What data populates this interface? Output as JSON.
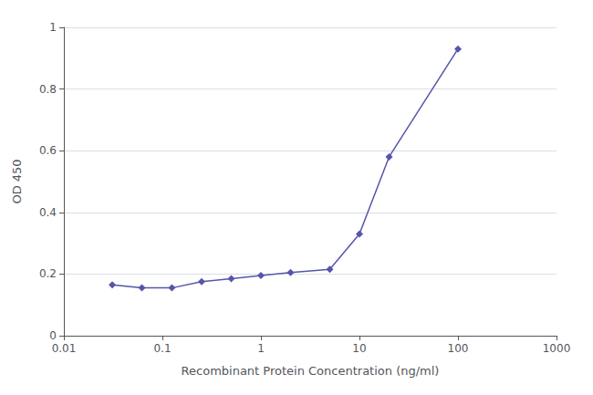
{
  "chart_data": {
    "type": "line",
    "xlabel": "Recombinant Protein Concentration (ng/ml)",
    "ylabel": "OD 450",
    "x": [
      0.031,
      0.062,
      0.125,
      0.25,
      0.5,
      1.0,
      2.0,
      5.0,
      10.0,
      20.0,
      100.0
    ],
    "values": [
      0.165,
      0.155,
      0.155,
      0.175,
      0.185,
      0.195,
      0.205,
      0.215,
      0.33,
      0.58,
      0.93
    ],
    "color": "#5555aa",
    "marker": "diamond",
    "log": "x",
    "xlim": [
      0.01,
      1000
    ],
    "xticks": [
      0.01,
      0.1,
      1,
      10,
      100,
      1000
    ],
    "ylim": [
      0,
      1
    ],
    "yticks": [
      0,
      0.2,
      0.4,
      0.6,
      0.8,
      1
    ],
    "grid": true
  }
}
